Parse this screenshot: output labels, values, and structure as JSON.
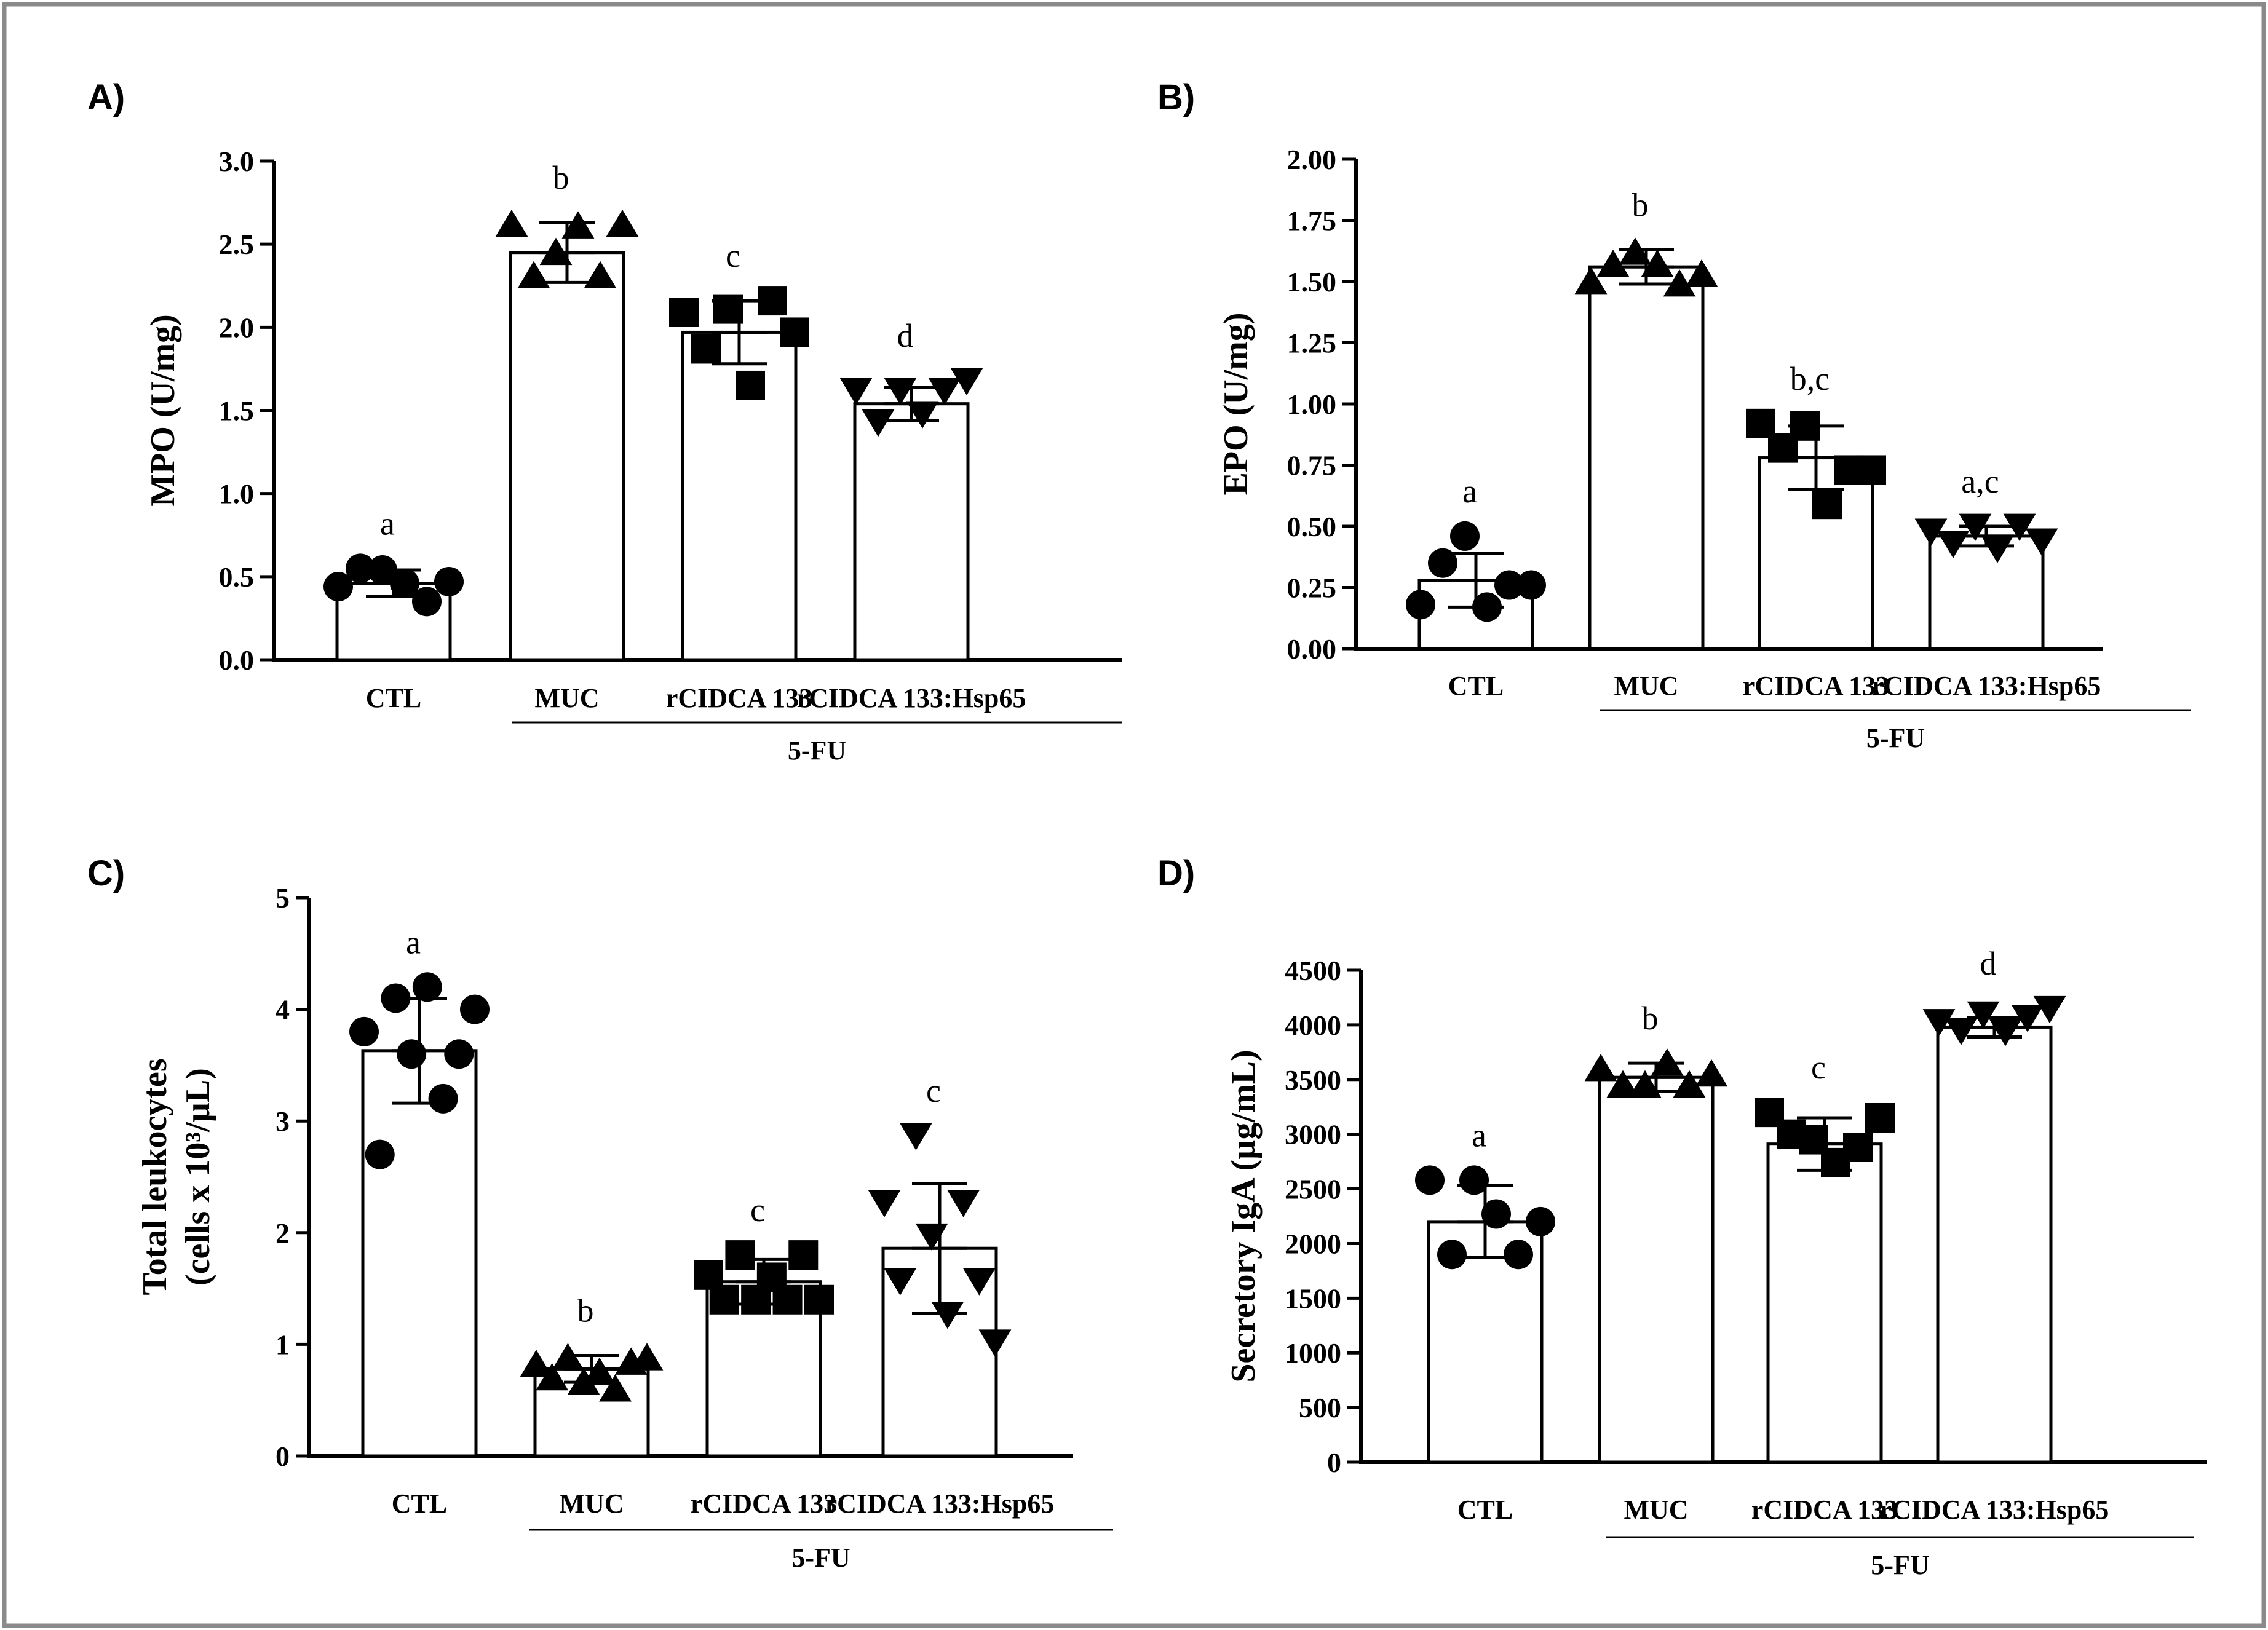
{
  "chart_data": [
    {
      "panel": "A)",
      "type": "bar",
      "ylabel": "MPO (U/mg)",
      "ylim": [
        0,
        3.0
      ],
      "yticks": [
        "0.0",
        "0.5",
        "1.0",
        "1.5",
        "2.0",
        "2.5",
        "3.0"
      ],
      "categories": [
        "CTL",
        "MUC",
        "rCIDCA 133",
        "rCIDCA 133:Hsp65"
      ],
      "group_label": "5-FU",
      "markers": [
        "circle",
        "triangle-up",
        "square",
        "triangle-down"
      ],
      "means": [
        0.46,
        2.45,
        1.97,
        1.54
      ],
      "sd": [
        0.08,
        0.18,
        0.19,
        0.1
      ],
      "letters": [
        "a",
        "b",
        "c",
        "d"
      ],
      "points": [
        [
          0.44,
          0.55,
          0.54,
          0.46,
          0.35,
          0.47
        ],
        [
          2.62,
          2.31,
          2.45,
          2.61,
          2.31,
          2.62
        ],
        [
          2.09,
          1.87,
          2.11,
          1.65,
          2.16,
          1.97
        ],
        [
          1.62,
          1.43,
          1.62,
          1.48,
          1.62,
          1.68
        ]
      ]
    },
    {
      "panel": "B)",
      "type": "bar",
      "ylabel": "EPO (U/mg)",
      "ylim": [
        0,
        2.0
      ],
      "yticks": [
        "0.00",
        "0.25",
        "0.50",
        "0.75",
        "1.00",
        "1.25",
        "1.50",
        "1.75",
        "2.00"
      ],
      "categories": [
        "CTL",
        "MUC",
        "rCIDCA 133",
        "rCIDCA 133:Hsp65"
      ],
      "group_label": "5-FU",
      "markers": [
        "circle",
        "triangle-up",
        "square",
        "triangle-down"
      ],
      "means": [
        0.28,
        1.56,
        0.78,
        0.46
      ],
      "sd": [
        0.11,
        0.07,
        0.13,
        0.04
      ],
      "letters": [
        "a",
        "b",
        "b,c",
        "a,c"
      ],
      "points": [
        [
          0.18,
          0.35,
          0.46,
          0.17,
          0.26,
          0.26
        ],
        [
          1.5,
          1.57,
          1.62,
          1.57,
          1.49,
          1.53
        ],
        [
          0.92,
          0.82,
          0.91,
          0.59,
          0.73,
          0.73
        ],
        [
          0.48,
          0.43,
          0.5,
          0.41,
          0.5,
          0.44
        ]
      ]
    },
    {
      "panel": "C)",
      "type": "bar",
      "ylabel_lines": [
        "Total leukocytes",
        "(cells x 10³/µL)"
      ],
      "ylim": [
        0,
        5
      ],
      "yticks": [
        "0",
        "1",
        "2",
        "3",
        "4",
        "5"
      ],
      "categories": [
        "CTL",
        "MUC",
        "rCIDCA 133",
        "rCIDCA 133:Hsp65"
      ],
      "group_label": "5-FU",
      "markers": [
        "circle",
        "triangle-up",
        "square",
        "triangle-down"
      ],
      "means": [
        3.63,
        0.78,
        1.56,
        1.86
      ],
      "sd": [
        0.47,
        0.12,
        0.2,
        0.58
      ],
      "letters": [
        "a",
        "b",
        "c",
        "c"
      ],
      "points": [
        [
          3.8,
          2.7,
          4.1,
          3.6,
          4.2,
          3.2,
          3.6,
          4.0
        ],
        [
          0.82,
          0.7,
          0.88,
          0.66,
          0.75,
          0.6,
          0.84,
          0.88
        ],
        [
          1.62,
          1.4,
          1.8,
          1.4,
          1.6,
          1.4,
          1.8,
          1.4
        ],
        [
          2.27,
          1.57,
          2.87,
          1.97,
          1.27,
          2.27,
          1.57,
          1.02
        ]
      ]
    },
    {
      "panel": "D)",
      "type": "bar",
      "ylabel": "Secretory IgA  (µg/mL)",
      "ylim": [
        0,
        4500
      ],
      "yticks": [
        "0",
        "500",
        "1000",
        "1500",
        "2000",
        "2500",
        "3000",
        "3500",
        "4000",
        "4500"
      ],
      "categories": [
        "CTL",
        "MUC",
        "rCIDCA 133",
        "rCIDCA 133:Hsp65"
      ],
      "group_label": "5-FU",
      "markers": [
        "circle",
        "triangle-up",
        "square",
        "triangle-down"
      ],
      "means": [
        2200,
        3520,
        2910,
        3980
      ],
      "sd": [
        330,
        130,
        240,
        90
      ],
      "letters": [
        "a",
        "b",
        "c",
        "d"
      ],
      "points": [
        [
          2580,
          1900,
          2580,
          2270,
          1900,
          2200
        ],
        [
          3600,
          3450,
          3450,
          3650,
          3450,
          3550
        ],
        [
          3200,
          3000,
          2950,
          2740,
          2880,
          3150
        ],
        [
          4030,
          3950,
          4100,
          3940,
          4070,
          4150
        ]
      ]
    }
  ]
}
